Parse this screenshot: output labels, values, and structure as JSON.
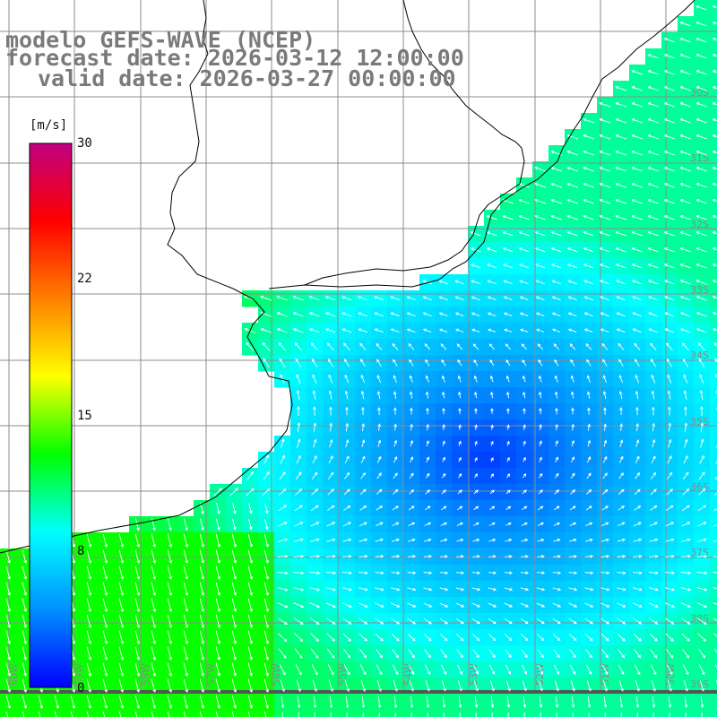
{
  "title": {
    "line1": "modelo GEFS-WAVE (NCEP)",
    "line2": "forecast date: 2026-03-12 12:00:00",
    "line3": "valid date: 2026-03-27 00:00:00"
  },
  "colorbar": {
    "unit": "[m/s]",
    "ticks": [
      "30",
      "22",
      "15",
      "8",
      "0"
    ],
    "min": 0,
    "max": 30,
    "gradient": [
      "#0000ff",
      "#0090ff",
      "#00ffff",
      "#00ff00",
      "#ffff00",
      "#ff8000",
      "#ff0000",
      "#c00080"
    ]
  },
  "map": {
    "land_color": "#ffffff",
    "coast_color": "#000000",
    "grid_color": "#8c8c8c",
    "arrow_color": "#ffffff",
    "lat_labels": [
      "30S",
      "31S",
      "32S",
      "33S",
      "34S",
      "35S",
      "36S",
      "37S",
      "38S",
      "39S"
    ],
    "lon_labels": [
      "60W",
      "59W",
      "58W",
      "57W",
      "56W",
      "55W",
      "54W",
      "53W",
      "52W",
      "51W",
      "50W"
    ]
  }
}
